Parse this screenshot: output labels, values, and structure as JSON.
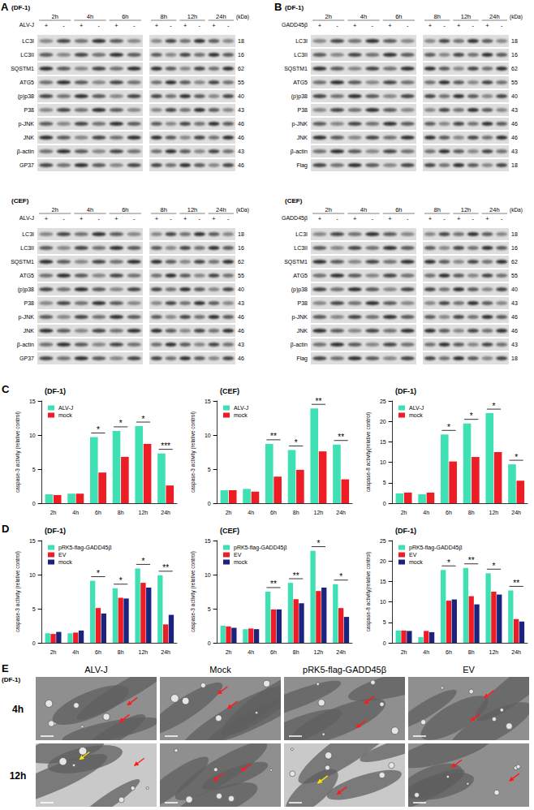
{
  "blot_panels": [
    {
      "letter": "A",
      "treatment": "ALV-J",
      "unit": "(kDa)",
      "lanes": [
        "+",
        "-"
      ],
      "time_groups": [
        [
          "2h",
          "4h",
          "6h"
        ],
        [
          "8h",
          "12h",
          "24h"
        ]
      ],
      "blots": [
        {
          "cell": "(DF-1)",
          "bands": [
            {
              "name": "LC3I",
              "kDa": 18
            },
            {
              "name": "LC3II",
              "kDa": 16
            },
            {
              "name": "SQSTM1",
              "kDa": 62
            },
            {
              "name": "ATG5",
              "kDa": 55
            },
            {
              "name": "(p)p38",
              "kDa": 40
            },
            {
              "name": "P38",
              "kDa": 43
            },
            {
              "name": "p-JNK",
              "kDa": 46
            },
            {
              "name": "JNK",
              "kDa": 46
            },
            {
              "name": "β-actin",
              "kDa": 43
            },
            {
              "name": "GP37",
              "kDa": 46
            }
          ]
        },
        {
          "cell": "(CEF)",
          "bands": [
            {
              "name": "LC3I",
              "kDa": 18
            },
            {
              "name": "LC3II",
              "kDa": 16
            },
            {
              "name": "SQSTM1",
              "kDa": 62
            },
            {
              "name": "ATG5",
              "kDa": 55
            },
            {
              "name": "(p)p38",
              "kDa": 40
            },
            {
              "name": "P38",
              "kDa": 43
            },
            {
              "name": "p-JNK",
              "kDa": 46
            },
            {
              "name": "JNK",
              "kDa": 46
            },
            {
              "name": "β-actin",
              "kDa": 43
            },
            {
              "name": "GP37",
              "kDa": 46
            }
          ]
        }
      ]
    },
    {
      "letter": "B",
      "treatment": "GADD45β",
      "unit": "(kDa)",
      "lanes": [
        "+",
        "-"
      ],
      "time_groups": [
        [
          "2h",
          "4h",
          "6h"
        ],
        [
          "8h",
          "12h",
          "24h"
        ]
      ],
      "blots": [
        {
          "cell": "(DF-1)",
          "bands": [
            {
              "name": "LC3I",
              "kDa": 18
            },
            {
              "name": "LC3II",
              "kDa": 16
            },
            {
              "name": "SQSTM1",
              "kDa": 62
            },
            {
              "name": "ATG5",
              "kDa": 55
            },
            {
              "name": "(p)p38",
              "kDa": 40
            },
            {
              "name": "P38",
              "kDa": 43
            },
            {
              "name": "p-JNK",
              "kDa": 46
            },
            {
              "name": "JNK",
              "kDa": 46
            },
            {
              "name": "β-actin",
              "kDa": 43
            },
            {
              "name": "Flag",
              "kDa": 18
            }
          ]
        },
        {
          "cell": "(CEF)",
          "bands": [
            {
              "name": "LC3I",
              "kDa": 18
            },
            {
              "name": "LC3II",
              "kDa": 16
            },
            {
              "name": "SQSTM1",
              "kDa": 62
            },
            {
              "name": "ATG5",
              "kDa": 55
            },
            {
              "name": "(p)p38",
              "kDa": 40
            },
            {
              "name": "P38",
              "kDa": 43
            },
            {
              "name": "p-JNK",
              "kDa": 46
            },
            {
              "name": "JNK",
              "kDa": 46
            },
            {
              "name": "β-actin",
              "kDa": 43
            },
            {
              "name": "Flag",
              "kDa": 18
            }
          ]
        }
      ]
    }
  ],
  "chart_data": [
    {
      "panel": "C",
      "type": "bar",
      "title": "(DF-1)",
      "y_label": "caspase-3 activity (relative control)",
      "categories": [
        "2h",
        "4h",
        "6h",
        "8h",
        "12h",
        "24h"
      ],
      "series": [
        {
          "name": "ALV-J",
          "color": "#3fe0b4",
          "values": [
            1.3,
            1.4,
            9.7,
            10.6,
            11.3,
            7.3
          ]
        },
        {
          "name": "mock",
          "color": "#ee1c25",
          "values": [
            1.2,
            1.4,
            4.5,
            6.8,
            8.7,
            2.6
          ]
        }
      ],
      "ylim": [
        0,
        15
      ],
      "yticks": [
        0,
        5,
        10,
        15
      ],
      "grid": false,
      "legend": "upper left",
      "significance": [
        {
          "category": "6h",
          "label": "*"
        },
        {
          "category": "8h",
          "label": "*"
        },
        {
          "category": "12h",
          "label": "*"
        },
        {
          "category": "24h",
          "label": "***"
        }
      ]
    },
    {
      "panel": "C",
      "type": "bar",
      "title": "(CEF)",
      "y_label": "caspase-3 activity (relative control)",
      "categories": [
        "2h",
        "4h",
        "6h",
        "8h",
        "12h",
        "24h"
      ],
      "series": [
        {
          "name": "ALV-J",
          "color": "#3fe0b4",
          "values": [
            1.9,
            2.1,
            8.7,
            7.8,
            13.9,
            8.6
          ]
        },
        {
          "name": "mock",
          "color": "#ee1c25",
          "values": [
            1.9,
            1.7,
            3.9,
            4.9,
            7.6,
            3.5
          ]
        }
      ],
      "ylim": [
        0,
        15
      ],
      "yticks": [
        0,
        5,
        10,
        15
      ],
      "grid": false,
      "legend": "upper left",
      "significance": [
        {
          "category": "6h",
          "label": "**"
        },
        {
          "category": "8h",
          "label": "*"
        },
        {
          "category": "12h",
          "label": "**"
        },
        {
          "category": "24h",
          "label": "**"
        }
      ]
    },
    {
      "panel": "C",
      "type": "bar",
      "title": "(DF-1)",
      "y_label": "caspase-8 activity(relative control)",
      "categories": [
        "2h",
        "4h",
        "6h",
        "8h",
        "12h",
        "24h"
      ],
      "series": [
        {
          "name": "ALV-J",
          "color": "#3fe0b4",
          "values": [
            2.4,
            2.2,
            16.8,
            19.5,
            22.0,
            9.5
          ]
        },
        {
          "name": "mock",
          "color": "#ee1c25",
          "values": [
            2.6,
            2.6,
            10.2,
            11.3,
            12.5,
            5.5
          ]
        }
      ],
      "ylim": [
        0,
        25
      ],
      "yticks": [
        0,
        5,
        10,
        15,
        20,
        25
      ],
      "grid": false,
      "legend": "upper left",
      "significance": [
        {
          "category": "6h",
          "label": "*"
        },
        {
          "category": "8h",
          "label": "*"
        },
        {
          "category": "12h",
          "label": "*"
        },
        {
          "category": "24h",
          "label": "*"
        }
      ]
    },
    {
      "panel": "D",
      "type": "bar",
      "title": "(DF-1)",
      "y_label": "caspase-3 activity (relative control)",
      "categories": [
        "2h",
        "4h",
        "6h",
        "8h",
        "12h",
        "24h"
      ],
      "series": [
        {
          "name": "pRK5-flag-GADD45β",
          "color": "#3fe0b4",
          "values": [
            1.4,
            1.4,
            9.1,
            8.0,
            10.9,
            9.9
          ]
        },
        {
          "name": "EV",
          "color": "#ee1c25",
          "values": [
            1.3,
            1.5,
            5.1,
            6.6,
            8.8,
            2.7
          ]
        },
        {
          "name": "mock",
          "color": "#1a237e",
          "values": [
            1.6,
            1.8,
            4.3,
            6.5,
            8.1,
            4.1
          ]
        }
      ],
      "ylim": [
        0,
        15
      ],
      "yticks": [
        0,
        5,
        10,
        15
      ],
      "grid": false,
      "legend": "upper left",
      "significance": [
        {
          "category": "6h",
          "label": "*"
        },
        {
          "category": "8h",
          "label": "*"
        },
        {
          "category": "12h",
          "label": "*"
        },
        {
          "category": "24h",
          "label": "**"
        }
      ]
    },
    {
      "panel": "D",
      "type": "bar",
      "title": "(CEF)",
      "y_label": "caspase-3 activity (relative control)",
      "categories": [
        "2h",
        "4h",
        "6h",
        "8h",
        "12h",
        "24h"
      ],
      "series": [
        {
          "name": "pRK5-flag-GADD45β",
          "color": "#3fe0b4",
          "values": [
            2.5,
            2.0,
            7.5,
            8.8,
            13.5,
            8.6
          ]
        },
        {
          "name": "EV",
          "color": "#ee1c25",
          "values": [
            2.4,
            2.1,
            4.9,
            6.4,
            7.6,
            5.1
          ]
        },
        {
          "name": "mock",
          "color": "#1a237e",
          "values": [
            2.2,
            2.0,
            4.9,
            5.8,
            8.1,
            3.8
          ]
        }
      ],
      "ylim": [
        0,
        15
      ],
      "yticks": [
        0,
        5,
        10,
        15
      ],
      "grid": false,
      "legend": "upper left",
      "significance": [
        {
          "category": "6h",
          "label": "**"
        },
        {
          "category": "8h",
          "label": "**"
        },
        {
          "category": "12h",
          "label": "*"
        },
        {
          "category": "24h",
          "label": "*"
        }
      ]
    },
    {
      "panel": "D",
      "type": "bar",
      "title": "(DF-1)",
      "y_label": "caspase-8 activity(relative control)",
      "categories": [
        "2h",
        "4h",
        "6h",
        "8h",
        "12h",
        "24h"
      ],
      "series": [
        {
          "name": "pRK5-flag-GADD45β",
          "color": "#3fe0b4",
          "values": [
            3.0,
            1.4,
            17.8,
            18.3,
            17.0,
            12.8
          ]
        },
        {
          "name": "EV",
          "color": "#ee1c25",
          "values": [
            3.0,
            2.9,
            10.3,
            11.4,
            12.5,
            5.8
          ]
        },
        {
          "name": "mock",
          "color": "#1a237e",
          "values": [
            2.9,
            2.6,
            10.6,
            9.4,
            11.8,
            5.2
          ]
        }
      ],
      "ylim": [
        0,
        25
      ],
      "yticks": [
        0,
        5,
        10,
        15,
        20,
        25
      ],
      "grid": false,
      "legend": "upper left",
      "significance": [
        {
          "category": "6h",
          "label": "*"
        },
        {
          "category": "8h",
          "label": "**"
        },
        {
          "category": "12h",
          "label": "*"
        },
        {
          "category": "24h",
          "label": "**"
        }
      ]
    }
  ],
  "tem_panel": {
    "letter": "E",
    "cell": "(DF-1)",
    "columns": [
      "ALV-J",
      "Mock",
      "pRK5-flag-GADD45β",
      "EV"
    ],
    "rows": [
      "4h",
      "12h"
    ]
  }
}
